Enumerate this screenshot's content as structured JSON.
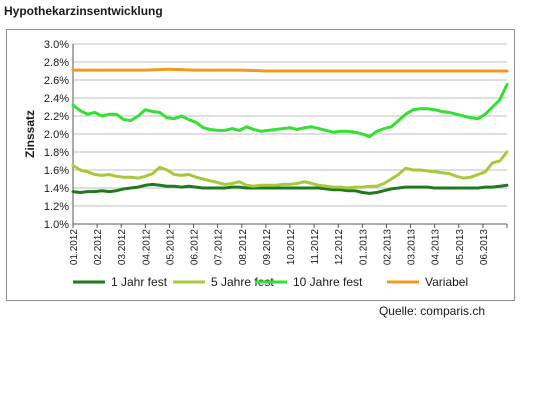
{
  "title": "Hypothekarzinsentwicklung",
  "source": "Quelle: comparis.ch",
  "chart_data": {
    "type": "line",
    "title": "Hypothekarzinsentwicklung",
    "xlabel": "",
    "ylabel": "Zinssatz",
    "ylim": [
      1.0,
      3.0
    ],
    "yticks": [
      "1.0%",
      "1.2%",
      "1.4%",
      "1.6%",
      "1.8%",
      "2.0%",
      "2.2%",
      "2.4%",
      "2.6%",
      "2.8%",
      "3.0%"
    ],
    "categories": [
      "01.2012",
      "02.2012",
      "03.2012",
      "04.2012",
      "05.2012",
      "06.2012",
      "07.2012",
      "08.2012",
      "09.2012",
      "10.2012",
      "11.2012",
      "12.2012",
      "01.2013",
      "02.2013",
      "03.2013",
      "04.2013",
      "05.2013",
      "06.2013"
    ],
    "grid": true,
    "legend_position": "bottom",
    "series": [
      {
        "name": "1 Jahr fest",
        "color": "#1f7a1f",
        "x": [
          0,
          0.3,
          0.6,
          0.9,
          1.2,
          1.5,
          1.8,
          2.1,
          2.4,
          2.7,
          3.0,
          3.3,
          3.6,
          3.9,
          4.2,
          4.5,
          4.8,
          5.1,
          5.4,
          5.7,
          6.0,
          6.3,
          6.6,
          6.9,
          7.2,
          7.5,
          7.8,
          8.1,
          8.4,
          8.7,
          9.0,
          9.3,
          9.6,
          9.9,
          10.2,
          10.5,
          10.8,
          11.1,
          11.4,
          11.7,
          12.0,
          12.3,
          12.6,
          12.9,
          13.2,
          13.5,
          13.8,
          14.1,
          14.4,
          14.7,
          15.0,
          15.3,
          15.6,
          15.9,
          16.2,
          16.5,
          16.8,
          17.1,
          17.4,
          17.7,
          18.0
        ],
        "values": [
          1.36,
          1.35,
          1.36,
          1.36,
          1.37,
          1.36,
          1.37,
          1.39,
          1.4,
          1.41,
          1.43,
          1.44,
          1.43,
          1.42,
          1.42,
          1.41,
          1.42,
          1.41,
          1.4,
          1.4,
          1.4,
          1.4,
          1.41,
          1.41,
          1.4,
          1.4,
          1.4,
          1.4,
          1.4,
          1.4,
          1.4,
          1.4,
          1.4,
          1.4,
          1.4,
          1.39,
          1.38,
          1.38,
          1.37,
          1.37,
          1.35,
          1.34,
          1.35,
          1.37,
          1.39,
          1.4,
          1.41,
          1.41,
          1.41,
          1.41,
          1.4,
          1.4,
          1.4,
          1.4,
          1.4,
          1.4,
          1.4,
          1.41,
          1.41,
          1.42,
          1.43
        ]
      },
      {
        "name": "5 Jahre fest",
        "color": "#a8c83c",
        "x": [
          0,
          0.3,
          0.6,
          0.9,
          1.2,
          1.5,
          1.8,
          2.1,
          2.4,
          2.7,
          3.0,
          3.3,
          3.6,
          3.9,
          4.2,
          4.5,
          4.8,
          5.1,
          5.4,
          5.7,
          6.0,
          6.3,
          6.6,
          6.9,
          7.2,
          7.5,
          7.8,
          8.1,
          8.4,
          8.7,
          9.0,
          9.3,
          9.6,
          9.9,
          10.2,
          10.5,
          10.8,
          11.1,
          11.4,
          11.7,
          12.0,
          12.3,
          12.6,
          12.9,
          13.2,
          13.5,
          13.8,
          14.1,
          14.4,
          14.7,
          15.0,
          15.3,
          15.6,
          15.9,
          16.2,
          16.5,
          16.8,
          17.1,
          17.4,
          17.7,
          18.0
        ],
        "values": [
          1.65,
          1.6,
          1.58,
          1.55,
          1.54,
          1.55,
          1.53,
          1.52,
          1.52,
          1.51,
          1.53,
          1.56,
          1.63,
          1.6,
          1.55,
          1.54,
          1.55,
          1.52,
          1.5,
          1.48,
          1.46,
          1.44,
          1.45,
          1.47,
          1.43,
          1.42,
          1.43,
          1.43,
          1.43,
          1.44,
          1.44,
          1.45,
          1.47,
          1.45,
          1.43,
          1.42,
          1.41,
          1.41,
          1.4,
          1.41,
          1.41,
          1.42,
          1.42,
          1.45,
          1.5,
          1.55,
          1.62,
          1.6,
          1.6,
          1.59,
          1.58,
          1.57,
          1.56,
          1.53,
          1.51,
          1.52,
          1.55,
          1.58,
          1.68,
          1.7,
          1.8
        ]
      },
      {
        "name": "10 Jahre fest",
        "color": "#33e033",
        "x": [
          0,
          0.3,
          0.6,
          0.9,
          1.2,
          1.5,
          1.8,
          2.1,
          2.4,
          2.7,
          3.0,
          3.3,
          3.6,
          3.9,
          4.2,
          4.5,
          4.8,
          5.1,
          5.4,
          5.7,
          6.0,
          6.3,
          6.6,
          6.9,
          7.2,
          7.5,
          7.8,
          8.1,
          8.4,
          8.7,
          9.0,
          9.3,
          9.6,
          9.9,
          10.2,
          10.5,
          10.8,
          11.1,
          11.4,
          11.7,
          12.0,
          12.3,
          12.6,
          12.9,
          13.2,
          13.5,
          13.8,
          14.1,
          14.4,
          14.7,
          15.0,
          15.3,
          15.6,
          15.9,
          16.2,
          16.5,
          16.8,
          17.1,
          17.4,
          17.7,
          18.0
        ],
        "values": [
          2.32,
          2.26,
          2.22,
          2.24,
          2.2,
          2.22,
          2.22,
          2.16,
          2.15,
          2.2,
          2.27,
          2.25,
          2.24,
          2.18,
          2.17,
          2.2,
          2.16,
          2.13,
          2.07,
          2.05,
          2.04,
          2.04,
          2.06,
          2.04,
          2.08,
          2.05,
          2.03,
          2.04,
          2.05,
          2.06,
          2.07,
          2.05,
          2.07,
          2.08,
          2.06,
          2.04,
          2.02,
          2.03,
          2.03,
          2.02,
          2.0,
          1.97,
          2.03,
          2.06,
          2.08,
          2.15,
          2.22,
          2.27,
          2.28,
          2.28,
          2.27,
          2.25,
          2.24,
          2.22,
          2.2,
          2.18,
          2.17,
          2.22,
          2.3,
          2.38,
          2.55
        ]
      },
      {
        "name": "Variabel",
        "color": "#f29a1f",
        "x": [
          0,
          1,
          2,
          3,
          4,
          5,
          6,
          7,
          8,
          9,
          10,
          11,
          12,
          13,
          14,
          15,
          16,
          17,
          18
        ],
        "values": [
          2.71,
          2.71,
          2.71,
          2.71,
          2.72,
          2.71,
          2.71,
          2.71,
          2.7,
          2.7,
          2.7,
          2.7,
          2.7,
          2.7,
          2.7,
          2.7,
          2.7,
          2.7,
          2.7
        ]
      }
    ]
  }
}
